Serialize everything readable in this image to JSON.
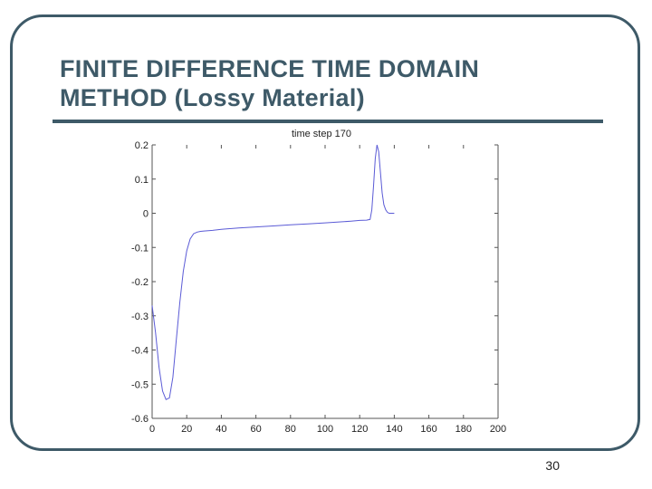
{
  "slide": {
    "title_line1": "FINITE DIFFERENCE TIME DOMAIN",
    "title_line2": "METHOD (Lossy Material)",
    "page_number": "30"
  },
  "colors": {
    "accent": "#3e5a68",
    "curve": "#5b5bd6",
    "axis": "#555555"
  },
  "chart_data": {
    "type": "line",
    "title": "time step 170",
    "xlim": [
      0,
      200
    ],
    "ylim": [
      -0.6,
      0.2
    ],
    "x_ticks": [
      0,
      20,
      40,
      60,
      80,
      100,
      120,
      140,
      160,
      180,
      200
    ],
    "x_tick_labels": [
      "0",
      "20",
      "40",
      "60",
      "80",
      "100",
      "120",
      "140",
      "160",
      "180",
      "200"
    ],
    "y_ticks": [
      0.2,
      0.1,
      0,
      -0.1,
      -0.2,
      -0.3,
      -0.4,
      -0.5,
      -0.6
    ],
    "y_tick_labels": [
      "0.2",
      "0.1",
      "0",
      "-0.1",
      "-0.2",
      "-0.3",
      "-0.4",
      "-0.5",
      "-0.6"
    ],
    "grid": false,
    "series": [
      {
        "x": [
          0,
          2,
          4,
          6,
          8,
          10,
          12,
          14,
          16,
          18,
          20,
          22,
          24,
          26,
          28,
          30,
          35,
          40,
          50,
          60,
          70,
          80,
          90,
          100,
          110,
          115,
          120,
          124,
          126,
          127,
          128,
          129,
          130,
          131,
          132,
          133,
          134,
          135,
          136,
          137,
          138,
          139,
          140
        ],
        "y": [
          -0.27,
          -0.35,
          -0.45,
          -0.52,
          -0.545,
          -0.54,
          -0.48,
          -0.37,
          -0.26,
          -0.17,
          -0.11,
          -0.075,
          -0.06,
          -0.055,
          -0.053,
          -0.052,
          -0.05,
          -0.047,
          -0.043,
          -0.04,
          -0.037,
          -0.034,
          -0.031,
          -0.028,
          -0.025,
          -0.023,
          -0.021,
          -0.02,
          -0.018,
          0.01,
          0.08,
          0.16,
          0.2,
          0.18,
          0.12,
          0.06,
          0.025,
          0.01,
          0.003,
          0.0,
          0.0,
          0.0,
          0.0
        ]
      }
    ]
  }
}
